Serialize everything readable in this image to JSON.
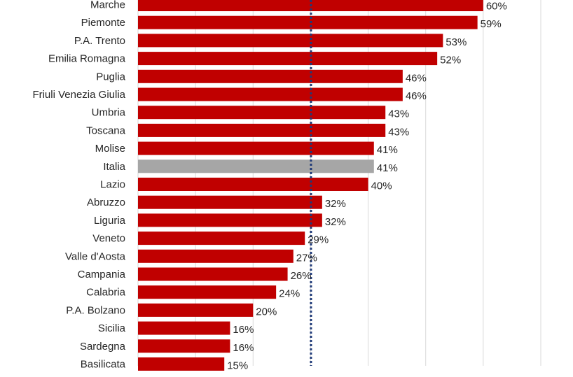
{
  "chart_data": {
    "type": "bar",
    "orientation": "horizontal",
    "categories": [
      "Marche",
      "Piemonte",
      "P.A. Trento",
      "Emilia Romagna",
      "Puglia",
      "Friuli Venezia Giulia",
      "Umbria",
      "Toscana",
      "Molise",
      "Italia",
      "Lazio",
      "Abruzzo",
      "Liguria",
      "Veneto",
      "Valle d'Aosta",
      "Campania",
      "Calabria",
      "P.A. Bolzano",
      "Sicilia",
      "Sardegna",
      "Basilicata"
    ],
    "values": [
      60,
      59,
      53,
      52,
      46,
      46,
      43,
      43,
      41,
      41,
      40,
      32,
      32,
      29,
      27,
      26,
      24,
      20,
      16,
      16,
      15
    ],
    "value_labels": [
      "60%",
      "59%",
      "53%",
      "52%",
      "46%",
      "46%",
      "43%",
      "43%",
      "41%",
      "41%",
      "40%",
      "32%",
      "32%",
      "29%",
      "27%",
      "26%",
      "24%",
      "20%",
      "16%",
      "16%",
      "15%"
    ],
    "xlim": [
      0,
      70
    ],
    "grid": true,
    "reference_line": {
      "value": 30,
      "style": "dotted",
      "color": "#1f3a78"
    },
    "colors": {
      "bar": "#c00000",
      "highlight": "#a6a6a6",
      "grid": "#d9d9d9"
    },
    "highlight_category": "Italia"
  }
}
